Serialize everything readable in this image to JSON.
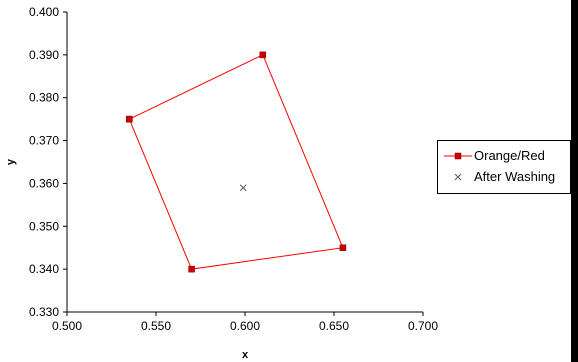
{
  "chart_data": {
    "type": "scatter",
    "xlabel": "x",
    "ylabel": "y",
    "xlim": [
      0.5,
      0.7
    ],
    "ylim": [
      0.33,
      0.4
    ],
    "x_ticks": [
      "0.500",
      "0.550",
      "0.600",
      "0.650",
      "0.700"
    ],
    "y_ticks": [
      "0.330",
      "0.340",
      "0.350",
      "0.360",
      "0.370",
      "0.380",
      "0.390",
      "0.400"
    ],
    "grid": false,
    "legend_position": "right",
    "series": [
      {
        "name": "Orange/Red",
        "marker": "square",
        "line": true,
        "color": "#ff0000",
        "marker_color": "#cc0000",
        "points": [
          {
            "x": 0.535,
            "y": 0.375
          },
          {
            "x": 0.61,
            "y": 0.39
          },
          {
            "x": 0.655,
            "y": 0.345
          },
          {
            "x": 0.57,
            "y": 0.34
          },
          {
            "x": 0.535,
            "y": 0.375
          }
        ]
      },
      {
        "name": "After Washing",
        "marker": "x",
        "line": false,
        "color": "#555555",
        "points": [
          {
            "x": 0.599,
            "y": 0.359
          }
        ]
      }
    ]
  }
}
